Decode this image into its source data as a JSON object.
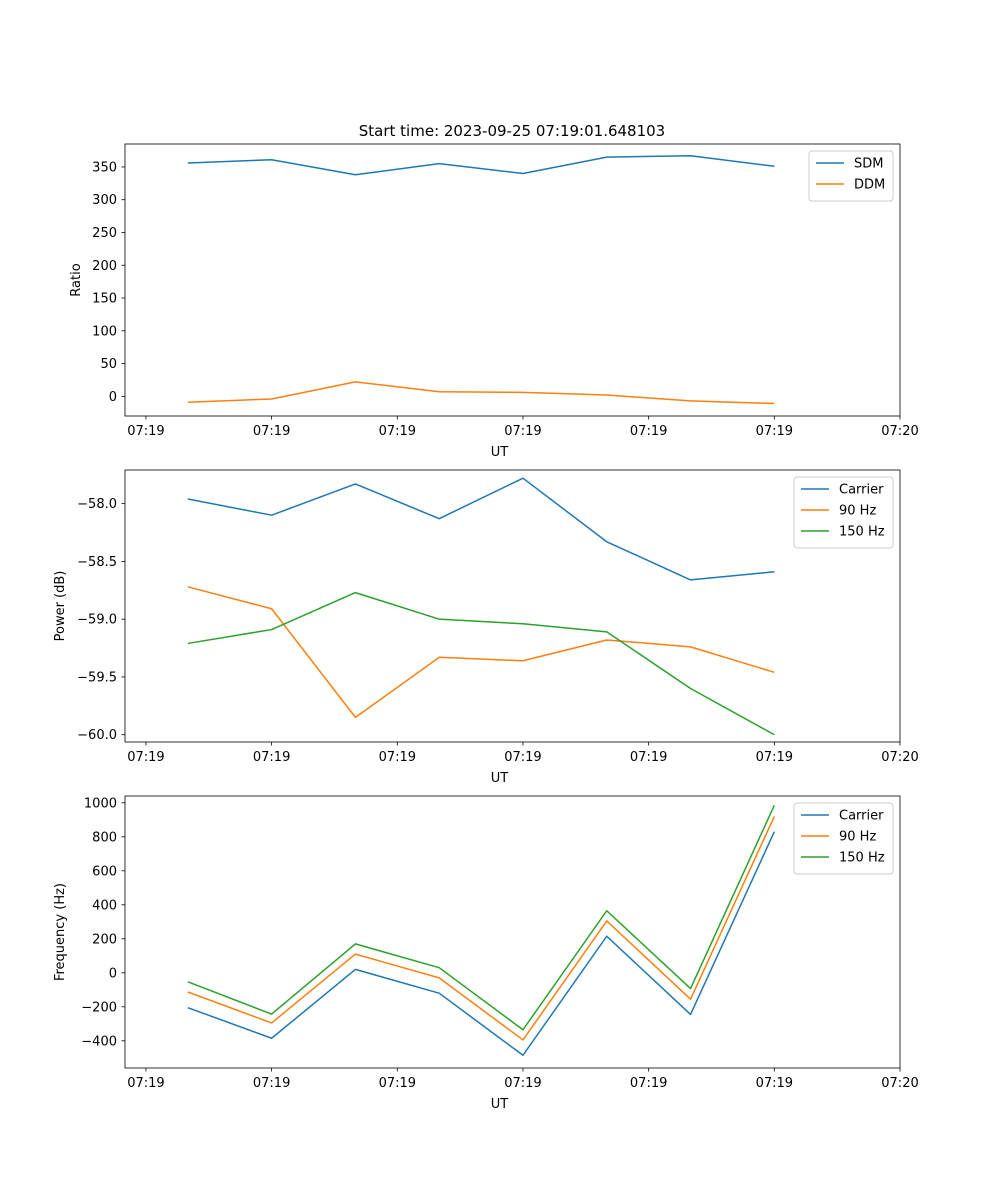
{
  "figure": {
    "title": "Start time: 2023-09-25 07:19:01.648103"
  },
  "colors": {
    "blue": "#1f77b4",
    "orange": "#ff7f0e",
    "green": "#2ca02c"
  },
  "chart_data": [
    {
      "type": "line",
      "title": "Start time: 2023-09-25 07:19:01.648103",
      "xlabel": "UT",
      "ylabel": "Ratio",
      "x": [
        0.5,
        1.5,
        2.5,
        3.5,
        4.5,
        5.5,
        6.5,
        7.5
      ],
      "xlim": [
        -0.25,
        9.0
      ],
      "xticks": [
        0,
        1.5,
        3,
        4.5,
        6,
        7.5,
        9
      ],
      "xtick_labels": [
        "07:19",
        "07:19",
        "07:19",
        "07:19",
        "07:19",
        "07:19",
        "07:20"
      ],
      "ylim": [
        -30,
        385
      ],
      "yticks": [
        0,
        50,
        100,
        150,
        200,
        250,
        300,
        350
      ],
      "ytick_labels": [
        "0",
        "50",
        "100",
        "150",
        "200",
        "250",
        "300",
        "350"
      ],
      "legend": "top-right",
      "series": [
        {
          "name": "SDM",
          "color": "#1f77b4",
          "values": [
            356,
            361,
            338,
            355,
            340,
            365,
            367,
            351
          ]
        },
        {
          "name": "DDM",
          "color": "#ff7f0e",
          "values": [
            -9,
            -4,
            22,
            7,
            6,
            2,
            -7,
            -11
          ]
        }
      ]
    },
    {
      "type": "line",
      "title": "",
      "xlabel": "UT",
      "ylabel": "Power (dB)",
      "x": [
        0.5,
        1.5,
        2.5,
        3.5,
        4.5,
        5.5,
        6.5,
        7.5
      ],
      "xlim": [
        -0.25,
        9.0
      ],
      "xticks": [
        0,
        1.5,
        3,
        4.5,
        6,
        7.5,
        9
      ],
      "xtick_labels": [
        "07:19",
        "07:19",
        "07:19",
        "07:19",
        "07:19",
        "07:19",
        "07:20"
      ],
      "ylim": [
        -60.063,
        -57.709
      ],
      "yticks": [
        -60.0,
        -59.5,
        -59.0,
        -58.5,
        -58.0
      ],
      "ytick_labels": [
        "−60.0",
        "−59.5",
        "−59.0",
        "−58.5",
        "−58.0"
      ],
      "legend": "top-right",
      "series": [
        {
          "name": "Carrier",
          "color": "#1f77b4",
          "values": [
            -57.96,
            -58.1,
            -57.83,
            -58.13,
            -57.78,
            -58.33,
            -58.66,
            -58.59
          ]
        },
        {
          "name": "90 Hz",
          "color": "#ff7f0e",
          "values": [
            -58.72,
            -58.91,
            -59.85,
            -59.33,
            -59.36,
            -59.18,
            -59.24,
            -59.46
          ]
        },
        {
          "name": "150 Hz",
          "color": "#2ca02c",
          "values": [
            -59.21,
            -59.09,
            -58.77,
            -59.0,
            -59.04,
            -59.11,
            -59.6,
            -60.0
          ]
        }
      ]
    },
    {
      "type": "line",
      "title": "",
      "xlabel": "UT",
      "ylabel": "Frequency (Hz)",
      "x": [
        0.5,
        1.5,
        2.5,
        3.5,
        4.5,
        5.5,
        6.5,
        7.5
      ],
      "xlim": [
        -0.25,
        9.0
      ],
      "xticks": [
        0,
        1.5,
        3,
        4.5,
        6,
        7.5,
        9
      ],
      "xtick_labels": [
        "07:19",
        "07:19",
        "07:19",
        "07:19",
        "07:19",
        "07:19",
        "07:20"
      ],
      "ylim": [
        -560,
        1040
      ],
      "yticks": [
        -400,
        -200,
        0,
        200,
        400,
        600,
        800,
        1000
      ],
      "ytick_labels": [
        "−400",
        "−200",
        "0",
        "200",
        "400",
        "600",
        "800",
        "1000"
      ],
      "legend": "top-right",
      "series": [
        {
          "name": "Carrier",
          "color": "#1f77b4",
          "values": [
            -205,
            -385,
            20,
            -120,
            -485,
            215,
            -245,
            830
          ]
        },
        {
          "name": "90 Hz",
          "color": "#ff7f0e",
          "values": [
            -113,
            -295,
            110,
            -30,
            -395,
            305,
            -155,
            920
          ]
        },
        {
          "name": "150 Hz",
          "color": "#2ca02c",
          "values": [
            -53,
            -243,
            170,
            30,
            -335,
            365,
            -93,
            985
          ]
        }
      ]
    }
  ]
}
